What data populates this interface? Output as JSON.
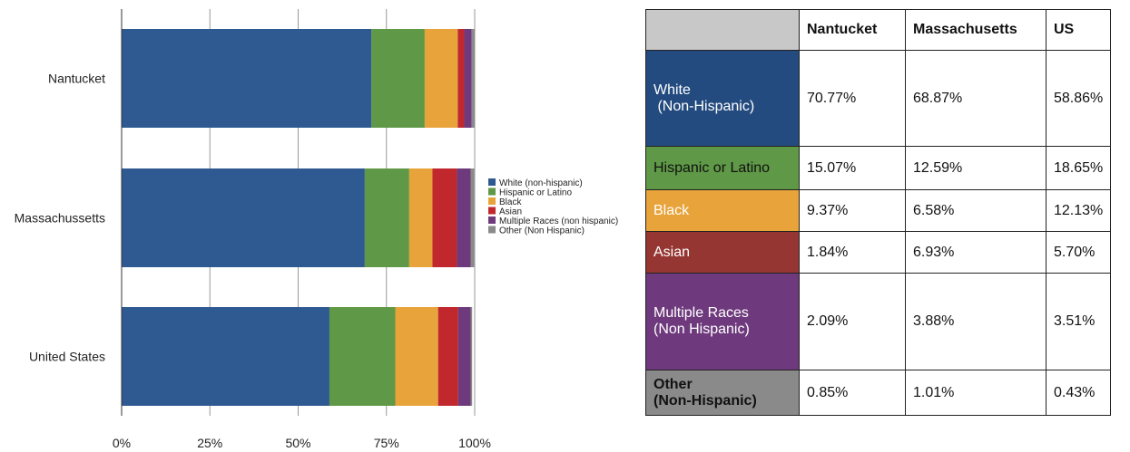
{
  "chart_data": {
    "type": "bar",
    "orientation": "horizontal",
    "stacked": true,
    "categories": [
      "Nantucket",
      "Massachussetts",
      "United States"
    ],
    "series": [
      {
        "name": "White (non-hispanic)",
        "color": "#2e5a91",
        "values": [
          70.77,
          68.87,
          58.86
        ]
      },
      {
        "name": "Hispanic or Latino",
        "color": "#5f9846",
        "values": [
          15.07,
          12.59,
          18.65
        ]
      },
      {
        "name": "Black",
        "color": "#e8a43a",
        "values": [
          9.37,
          6.58,
          12.13
        ]
      },
      {
        "name": "Asian",
        "color": "#c0282d",
        "values": [
          1.84,
          6.93,
          5.7
        ]
      },
      {
        "name": "Multiple Races (non hispanic)",
        "color": "#6e3a7d",
        "values": [
          2.09,
          3.88,
          3.51
        ]
      },
      {
        "name": "Other (Non Hispanic)",
        "color": "#8a8a8a",
        "values": [
          0.85,
          1.01,
          0.43
        ]
      }
    ],
    "xticks": [
      "0%",
      "25%",
      "50%",
      "75%",
      "100%"
    ],
    "xlim": [
      0,
      100
    ],
    "grid": true,
    "legend_position": "right"
  },
  "table": {
    "headers": [
      "",
      "Nantucket",
      "Massachusetts",
      "US"
    ],
    "rows": [
      {
        "label_lines": [
          "White",
          " (Non-Hispanic)"
        ],
        "bg": "#244b7f",
        "text_color": "#ffffff",
        "bold": false,
        "values": [
          "70.77%",
          "68.87%",
          "58.86%"
        ]
      },
      {
        "label_lines": [
          "Hispanic or Latino"
        ],
        "bg": "#5f9846",
        "text_color": "#111111",
        "bold": false,
        "values": [
          "15.07%",
          "12.59%",
          "18.65%"
        ]
      },
      {
        "label_lines": [
          "Black"
        ],
        "bg": "#e8a43a",
        "text_color": "#ffffff",
        "bold": false,
        "values": [
          "9.37%",
          "6.58%",
          "12.13%"
        ]
      },
      {
        "label_lines": [
          "Asian"
        ],
        "bg": "#963632",
        "text_color": "#ffffff",
        "bold": false,
        "values": [
          "1.84%",
          "6.93%",
          "5.70%"
        ]
      },
      {
        "label_lines": [
          "Multiple Races",
          "(Non Hispanic)"
        ],
        "bg": "#6e3a7d",
        "text_color": "#ffffff",
        "bold": false,
        "values": [
          "2.09%",
          "3.88%",
          "3.51%"
        ]
      },
      {
        "label_lines": [
          "Other",
          "(Non-Hispanic)"
        ],
        "bg": "#8a8a8a",
        "text_color": "#111111",
        "bold": true,
        "values": [
          "0.85%",
          "1.01%",
          "0.43%"
        ]
      }
    ]
  }
}
